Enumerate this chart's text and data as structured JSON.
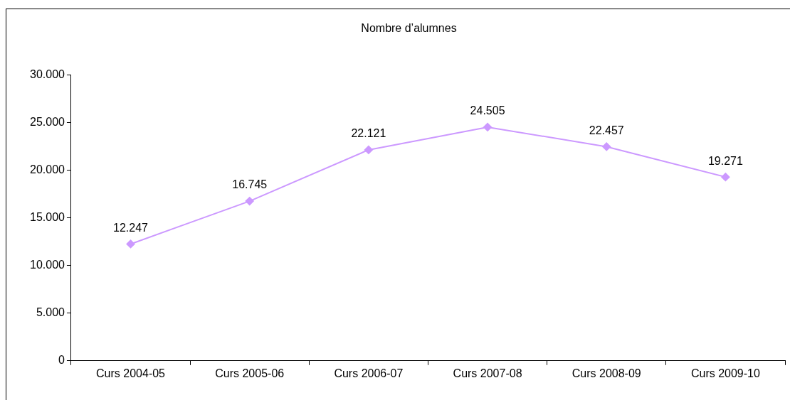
{
  "chart_data": {
    "type": "line",
    "title": "Nombre d’alumnes",
    "categories": [
      "Curs 2004-05",
      "Curs 2005-06",
      "Curs 2006-07",
      "Curs 2007-08",
      "Curs 2008-09",
      "Curs 2009-10"
    ],
    "series": [
      {
        "color": "#cc99ff",
        "values": [
          12247,
          16745,
          22121,
          24505,
          22457,
          19271
        ],
        "value_labels": [
          "12.247",
          "16.745",
          "22.121",
          "24.505",
          "22.457",
          "19.271"
        ]
      }
    ],
    "ylim": [
      0,
      30000
    ],
    "yticks": [
      {
        "value": 0,
        "label": "0"
      },
      {
        "value": 5000,
        "label": "5.000"
      },
      {
        "value": 10000,
        "label": "10.000"
      },
      {
        "value": 15000,
        "label": "15.000"
      },
      {
        "value": 20000,
        "label": "20.000"
      },
      {
        "value": 25000,
        "label": "25.000"
      },
      {
        "value": 30000,
        "label": "30.000"
      }
    ],
    "grid": false,
    "legend": false,
    "marker": "diamond",
    "line_style": "solid"
  }
}
